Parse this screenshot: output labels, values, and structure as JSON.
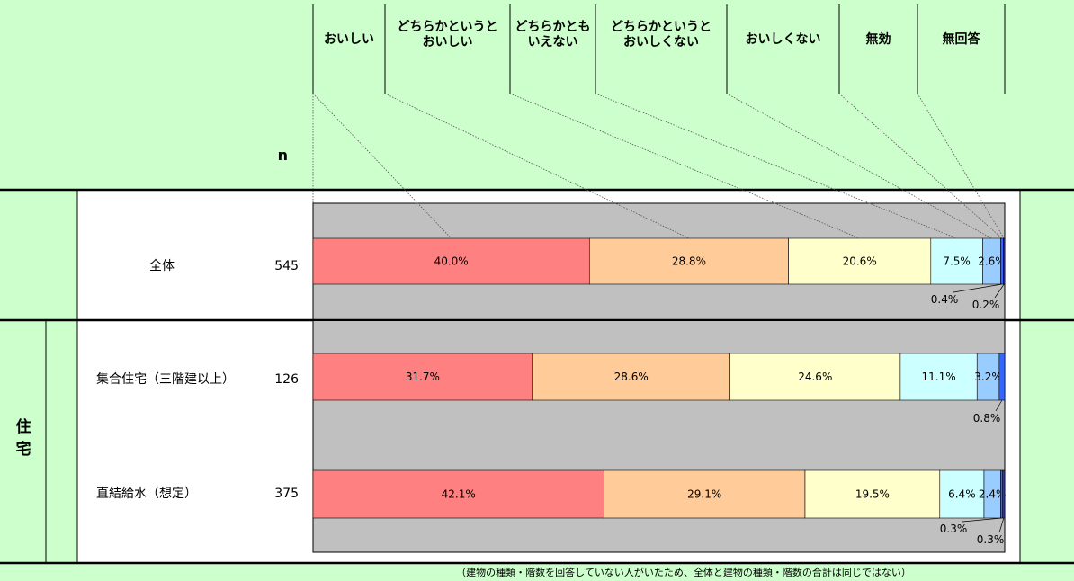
{
  "chart_data": {
    "type": "bar",
    "stacked": true,
    "orientation": "horizontal",
    "n_header": "n",
    "legend": [
      "おいしい",
      "どちらかというと\nおいしい",
      "どちらかとも\nいえない",
      "どちらかというと\nおいしくない",
      "おいしくない",
      "無効",
      "無回答"
    ],
    "group_label": "住宅",
    "rows": [
      {
        "label": "全体",
        "n": "545",
        "values": [
          40.0,
          28.8,
          20.6,
          7.5,
          2.6,
          0.4,
          0.2
        ]
      },
      {
        "label": "集合住宅（三階建以上）",
        "n": "126",
        "values": [
          31.7,
          28.6,
          24.6,
          11.1,
          3.2,
          0.8,
          0.0
        ]
      },
      {
        "label": "直結給水（想定）",
        "n": "375",
        "values": [
          42.1,
          29.1,
          19.5,
          6.4,
          2.4,
          0.3,
          0.3
        ]
      }
    ],
    "value_labels": [
      [
        "40.0%",
        "28.8%",
        "20.6%",
        "7.5%",
        "2.6%",
        "0.4%",
        "0.2%"
      ],
      [
        "31.7%",
        "28.6%",
        "24.6%",
        "11.1%",
        "3.2%",
        "0.8%",
        ""
      ],
      [
        "42.1%",
        "29.1%",
        "19.5%",
        "6.4%",
        "2.4%",
        "0.3%",
        "0.3%"
      ]
    ],
    "colors": [
      "#ff8080",
      "#ffcc99",
      "#ffffcc",
      "#ccffff",
      "#99ccff",
      "#3366ff",
      "#333399"
    ],
    "plot_background": "#c0c0c0",
    "footnote": "（建物の種類・階数を回答していない人がいたため、全体と建物の種類・階数の合計は同じではない）"
  }
}
